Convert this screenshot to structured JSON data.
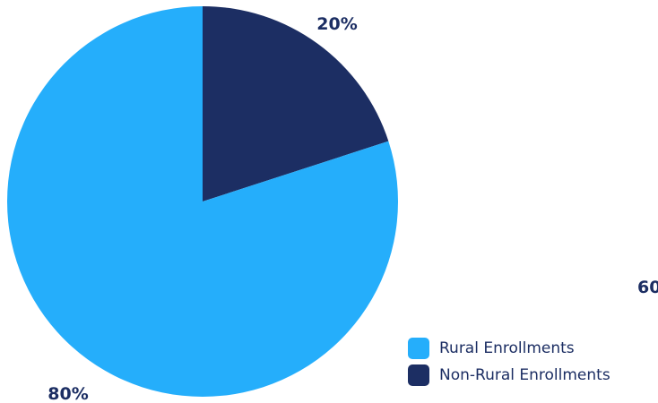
{
  "chart_data": {
    "type": "pie",
    "title": "",
    "categories": [
      "Rural Enrollments",
      "Non-Rural Enrollments"
    ],
    "values": [
      80,
      20
    ],
    "value_labels": [
      "80%",
      "20%"
    ],
    "colors": {
      "Rural Enrollments": "#25aefb",
      "Non-Rural Enrollments": "#1c2e63"
    },
    "start_angle_deg": 0,
    "direction": "clockwise",
    "legend_position": "bottom-right",
    "stray_label": "60"
  },
  "legend": {
    "items": [
      {
        "label": "Rural Enrollments",
        "color": "#25aefb"
      },
      {
        "label": "Non-Rural Enrollments",
        "color": "#1c2e63"
      }
    ]
  }
}
